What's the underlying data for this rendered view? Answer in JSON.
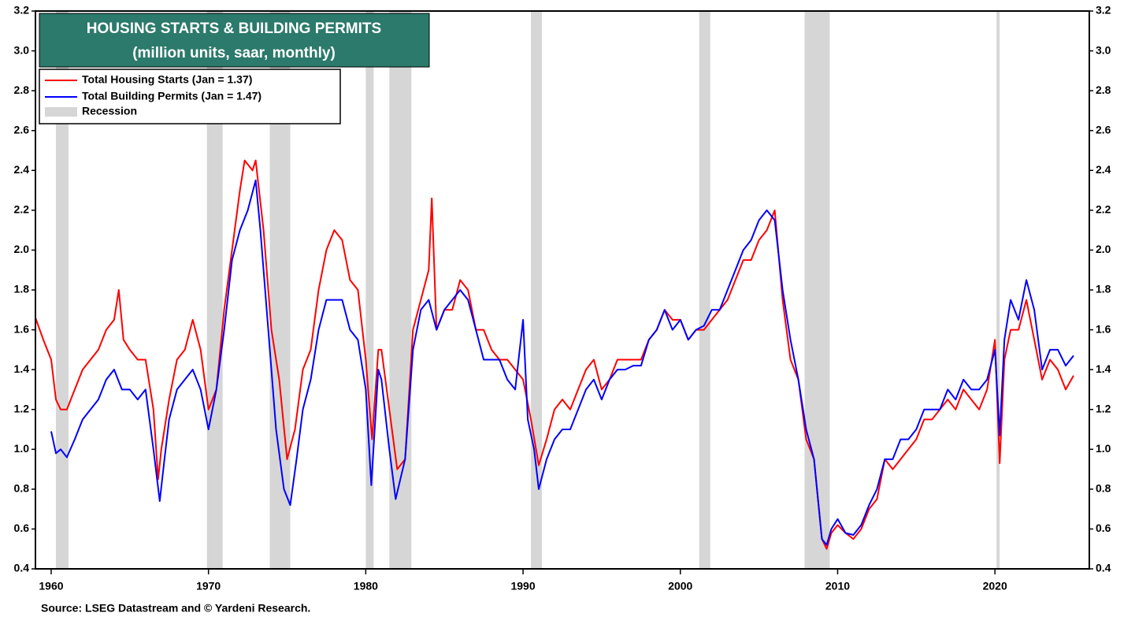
{
  "chart_data": {
    "type": "line",
    "title": "HOUSING STARTS & BUILDING PERMITS",
    "subtitle": "(million units, saar, monthly)",
    "source": "Source: LSEG Datastream and © Yardeni Research.",
    "xlim": [
      1959,
      2026
    ],
    "xticks": [
      1960,
      1970,
      1980,
      1990,
      2000,
      2010,
      2020
    ],
    "ylim": [
      0.4,
      3.2
    ],
    "yticks": [
      0.4,
      0.6,
      0.8,
      {
        "value": 1,
        "label": "1.0"
      },
      1.2,
      1.4,
      1.6,
      1.8,
      {
        "value": 2,
        "label": "2.0"
      },
      2.2,
      2.4,
      2.6,
      2.8,
      {
        "value": 3,
        "label": "3.0"
      },
      3.2
    ],
    "recession_name": "Recession",
    "recession_color": "#d6d6d6",
    "recessions": [
      [
        1960.3,
        1961.1
      ],
      [
        1969.9,
        1970.9
      ],
      [
        1973.9,
        1975.2
      ],
      [
        1980.0,
        1980.5
      ],
      [
        1981.5,
        1982.9
      ],
      [
        1990.5,
        1991.2
      ],
      [
        2001.2,
        2001.9
      ],
      [
        2007.9,
        2009.5
      ],
      [
        2020.1,
        2020.3
      ]
    ],
    "series": [
      {
        "name": "Total Housing Starts (Jan = 1.37)",
        "color": "#ff0000",
        "x": [
          1959.0,
          1959.5,
          1960.0,
          1960.3,
          1960.6,
          1961.0,
          1961.5,
          1962.0,
          1962.5,
          1963.0,
          1963.5,
          1964.0,
          1964.3,
          1964.6,
          1965.0,
          1965.5,
          1966.0,
          1966.5,
          1966.8,
          1967.0,
          1967.5,
          1968.0,
          1968.5,
          1969.0,
          1969.5,
          1970.0,
          1970.5,
          1971.0,
          1971.5,
          1972.0,
          1972.3,
          1972.8,
          1973.0,
          1973.5,
          1974.0,
          1974.5,
          1975.0,
          1975.5,
          1976.0,
          1976.5,
          1977.0,
          1977.5,
          1978.0,
          1978.5,
          1979.0,
          1979.5,
          1980.0,
          1980.4,
          1980.8,
          1981.0,
          1981.5,
          1982.0,
          1982.5,
          1983.0,
          1983.5,
          1984.0,
          1984.2,
          1984.5,
          1985.0,
          1985.5,
          1986.0,
          1986.5,
          1987.0,
          1987.5,
          1988.0,
          1988.5,
          1989.0,
          1989.5,
          1990.0,
          1990.5,
          1991.0,
          1991.5,
          1992.0,
          1992.5,
          1993.0,
          1993.5,
          1994.0,
          1994.5,
          1995.0,
          1995.5,
          1996.0,
          1996.5,
          1997.0,
          1997.5,
          1998.0,
          1998.5,
          1999.0,
          1999.5,
          2000.0,
          2000.5,
          2001.0,
          2001.5,
          2002.0,
          2002.5,
          2003.0,
          2003.5,
          2004.0,
          2004.5,
          2005.0,
          2005.5,
          2006.0,
          2006.5,
          2007.0,
          2007.5,
          2008.0,
          2008.5,
          2009.0,
          2009.3,
          2009.6,
          2010.0,
          2010.5,
          2011.0,
          2011.5,
          2012.0,
          2012.5,
          2013.0,
          2013.5,
          2014.0,
          2014.5,
          2015.0,
          2015.5,
          2016.0,
          2016.5,
          2017.0,
          2017.5,
          2018.0,
          2018.5,
          2019.0,
          2019.5,
          2020.0,
          2020.3,
          2020.6,
          2021.0,
          2021.5,
          2022.0,
          2022.5,
          2023.0,
          2023.5,
          2024.0,
          2024.5,
          2025.0
        ],
        "values": [
          1.66,
          1.55,
          1.45,
          1.25,
          1.2,
          1.2,
          1.3,
          1.4,
          1.45,
          1.5,
          1.6,
          1.65,
          1.8,
          1.55,
          1.5,
          1.45,
          1.45,
          1.2,
          0.85,
          1.0,
          1.25,
          1.45,
          1.5,
          1.65,
          1.5,
          1.2,
          1.3,
          1.7,
          2.0,
          2.3,
          2.45,
          2.4,
          2.45,
          2.1,
          1.6,
          1.35,
          0.95,
          1.1,
          1.4,
          1.5,
          1.8,
          2.0,
          2.1,
          2.05,
          1.85,
          1.8,
          1.45,
          1.05,
          1.5,
          1.5,
          1.2,
          0.9,
          0.95,
          1.6,
          1.75,
          1.9,
          2.26,
          1.6,
          1.7,
          1.7,
          1.85,
          1.8,
          1.6,
          1.6,
          1.5,
          1.45,
          1.45,
          1.4,
          1.35,
          1.15,
          0.92,
          1.05,
          1.2,
          1.25,
          1.2,
          1.3,
          1.4,
          1.45,
          1.3,
          1.35,
          1.45,
          1.45,
          1.45,
          1.45,
          1.55,
          1.6,
          1.7,
          1.65,
          1.65,
          1.55,
          1.6,
          1.6,
          1.65,
          1.7,
          1.75,
          1.85,
          1.95,
          1.95,
          2.05,
          2.1,
          2.2,
          1.75,
          1.45,
          1.35,
          1.05,
          0.95,
          0.55,
          0.5,
          0.58,
          0.62,
          0.58,
          0.55,
          0.6,
          0.7,
          0.75,
          0.95,
          0.9,
          0.95,
          1.0,
          1.05,
          1.15,
          1.15,
          1.2,
          1.25,
          1.2,
          1.3,
          1.25,
          1.2,
          1.3,
          1.55,
          0.93,
          1.45,
          1.6,
          1.6,
          1.75,
          1.55,
          1.35,
          1.45,
          1.4,
          1.3,
          1.37
        ]
      },
      {
        "name": "Total Building Permits  (Jan = 1.47)",
        "color": "#0000ff",
        "x": [
          1960.0,
          1960.3,
          1960.6,
          1961.0,
          1961.5,
          1962.0,
          1962.5,
          1963.0,
          1963.5,
          1964.0,
          1964.5,
          1965.0,
          1965.5,
          1966.0,
          1966.5,
          1966.9,
          1967.2,
          1967.5,
          1968.0,
          1968.5,
          1969.0,
          1969.5,
          1970.0,
          1970.5,
          1971.0,
          1971.5,
          1972.0,
          1972.5,
          1973.0,
          1973.3,
          1973.8,
          1974.3,
          1974.8,
          1975.2,
          1975.6,
          1976.0,
          1976.5,
          1977.0,
          1977.5,
          1978.0,
          1978.5,
          1979.0,
          1979.5,
          1980.0,
          1980.35,
          1980.8,
          1981.0,
          1981.5,
          1981.9,
          1982.5,
          1983.0,
          1983.5,
          1984.0,
          1984.5,
          1985.0,
          1985.5,
          1986.0,
          1986.5,
          1987.0,
          1987.5,
          1988.0,
          1988.5,
          1989.0,
          1989.5,
          1990.0,
          1990.3,
          1990.7,
          1991.0,
          1991.5,
          1992.0,
          1992.5,
          1993.0,
          1993.5,
          1994.0,
          1994.5,
          1995.0,
          1995.5,
          1996.0,
          1996.5,
          1997.0,
          1997.5,
          1998.0,
          1998.5,
          1999.0,
          1999.5,
          2000.0,
          2000.5,
          2001.0,
          2001.5,
          2002.0,
          2002.5,
          2003.0,
          2003.5,
          2004.0,
          2004.5,
          2005.0,
          2005.5,
          2006.0,
          2006.5,
          2007.0,
          2007.5,
          2008.0,
          2008.5,
          2009.0,
          2009.3,
          2009.6,
          2010.0,
          2010.5,
          2011.0,
          2011.5,
          2012.0,
          2012.5,
          2013.0,
          2013.5,
          2014.0,
          2014.5,
          2015.0,
          2015.5,
          2016.0,
          2016.5,
          2017.0,
          2017.5,
          2018.0,
          2018.5,
          2019.0,
          2019.5,
          2020.0,
          2020.3,
          2020.6,
          2021.0,
          2021.5,
          2022.0,
          2022.5,
          2023.0,
          2023.5,
          2024.0,
          2024.5,
          2025.0
        ],
        "values": [
          1.09,
          0.98,
          1.0,
          0.96,
          1.05,
          1.15,
          1.2,
          1.25,
          1.35,
          1.4,
          1.3,
          1.3,
          1.25,
          1.3,
          1.0,
          0.74,
          0.95,
          1.15,
          1.3,
          1.35,
          1.4,
          1.3,
          1.1,
          1.3,
          1.6,
          1.95,
          2.1,
          2.2,
          2.35,
          2.1,
          1.6,
          1.1,
          0.8,
          0.72,
          0.95,
          1.2,
          1.35,
          1.6,
          1.75,
          1.75,
          1.75,
          1.6,
          1.55,
          1.3,
          0.82,
          1.4,
          1.35,
          1.0,
          0.75,
          0.95,
          1.5,
          1.7,
          1.75,
          1.6,
          1.7,
          1.75,
          1.8,
          1.75,
          1.6,
          1.45,
          1.45,
          1.45,
          1.35,
          1.3,
          1.65,
          1.15,
          1.0,
          0.8,
          0.95,
          1.05,
          1.1,
          1.1,
          1.2,
          1.3,
          1.35,
          1.25,
          1.35,
          1.4,
          1.4,
          1.42,
          1.42,
          1.55,
          1.6,
          1.7,
          1.6,
          1.65,
          1.55,
          1.6,
          1.62,
          1.7,
          1.7,
          1.8,
          1.9,
          2.0,
          2.05,
          2.15,
          2.2,
          2.15,
          1.8,
          1.55,
          1.35,
          1.1,
          0.95,
          0.55,
          0.52,
          0.6,
          0.65,
          0.58,
          0.57,
          0.62,
          0.72,
          0.8,
          0.95,
          0.95,
          1.05,
          1.05,
          1.1,
          1.2,
          1.2,
          1.2,
          1.3,
          1.25,
          1.35,
          1.3,
          1.3,
          1.35,
          1.5,
          1.07,
          1.55,
          1.75,
          1.65,
          1.85,
          1.7,
          1.4,
          1.5,
          1.5,
          1.42,
          1.47
        ]
      }
    ]
  }
}
